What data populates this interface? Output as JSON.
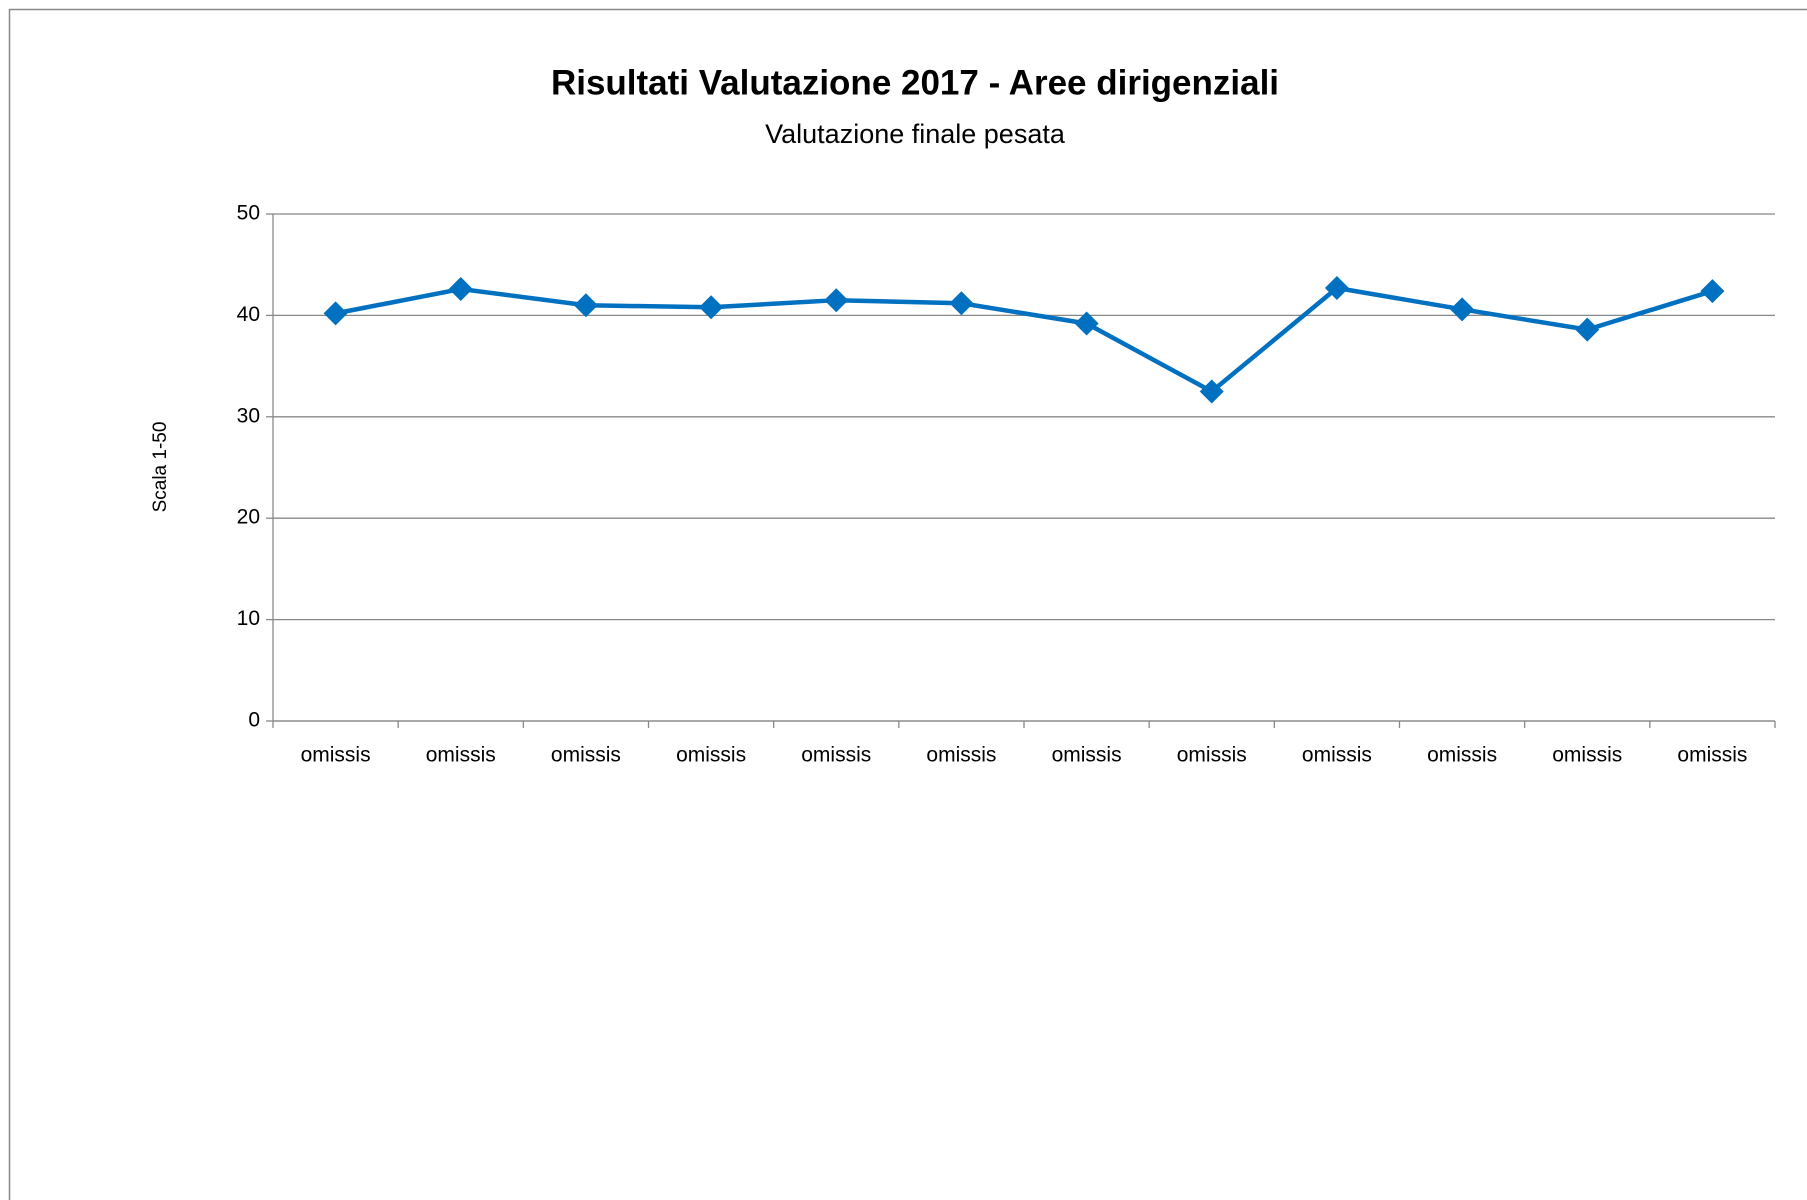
{
  "chart_data": {
    "type": "line",
    "title": "Risultati Valutazione 2017 - Aree dirigenziali",
    "subtitle": "Valutazione finale pesata",
    "y_axis_label": "Scala  1-50",
    "categories": [
      "omissis",
      "omissis",
      "omissis",
      "omissis",
      "omissis",
      "omissis",
      "omissis",
      "omissis",
      "omissis",
      "omissis",
      "omissis",
      "omissis"
    ],
    "series": [
      {
        "name": "Valutazione finale pesata",
        "color": "#0070c0",
        "values": [
          40.2,
          42.6,
          41.0,
          40.8,
          41.5,
          41.2,
          39.2,
          32.5,
          42.7,
          40.6,
          38.6,
          42.4
        ]
      }
    ],
    "ylim": [
      0,
      50
    ],
    "yticks": [
      0,
      10,
      20,
      30,
      40,
      50
    ],
    "grid": true
  }
}
